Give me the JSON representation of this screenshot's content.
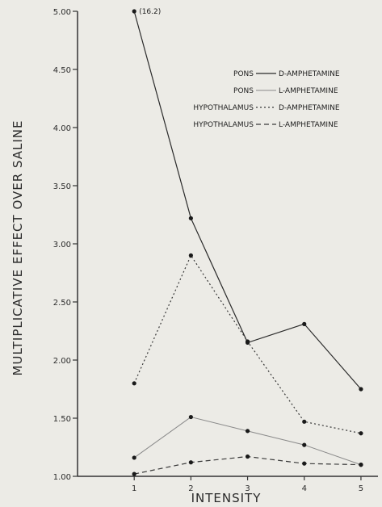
{
  "chart_data": {
    "type": "line",
    "title": "",
    "xlabel": "INTENSITY",
    "ylabel": "MULTIPLICATIVE EFFECT OVER SALINE",
    "x": [
      1,
      2,
      3,
      4,
      5
    ],
    "xlim": [
      0,
      5.3
    ],
    "ylim": [
      1.0,
      5.0
    ],
    "x_ticks": [
      "1",
      "2",
      "3",
      "4",
      "5"
    ],
    "y_ticks": [
      {
        "value": 1.0,
        "label": "1.00"
      },
      {
        "value": 1.5,
        "label": "1.50"
      },
      {
        "value": 2.0,
        "label": "2.00"
      },
      {
        "value": 2.5,
        "label": "2.50"
      },
      {
        "value": 3.0,
        "label": "3.00"
      },
      {
        "value": 3.5,
        "label": "3.50"
      },
      {
        "value": 4.0,
        "label": "4.00"
      },
      {
        "value": 4.5,
        "label": "4.50"
      },
      {
        "value": 5.0,
        "label": "5.00"
      }
    ],
    "grid": false,
    "legend_position": "top-right",
    "series": [
      {
        "region": "PONS",
        "drug": "D-AMPHETAMINE",
        "line_style": "solid",
        "color": "#2a2a2a",
        "values": [
          5.0,
          3.22,
          2.15,
          2.31,
          1.75
        ]
      },
      {
        "region": "PONS",
        "drug": "L-AMPHETAMINE",
        "line_style": "solid-light",
        "color": "#8a8a8a",
        "values": [
          1.16,
          1.51,
          1.39,
          1.27,
          1.1
        ]
      },
      {
        "region": "HYPOTHALAMUS",
        "drug": "D-AMPHETAMINE",
        "line_style": "dotted",
        "color": "#3a3a3a",
        "values": [
          1.8,
          2.9,
          2.16,
          1.47,
          1.37
        ]
      },
      {
        "region": "HYPOTHALAMUS",
        "drug": "L-AMPHETAMINE",
        "line_style": "dashed",
        "color": "#3a3a3a",
        "values": [
          1.02,
          1.12,
          1.17,
          1.11,
          1.1
        ]
      }
    ],
    "annotations": [
      {
        "text": "(16.2)",
        "series_index": 0,
        "x": 1
      }
    ]
  }
}
